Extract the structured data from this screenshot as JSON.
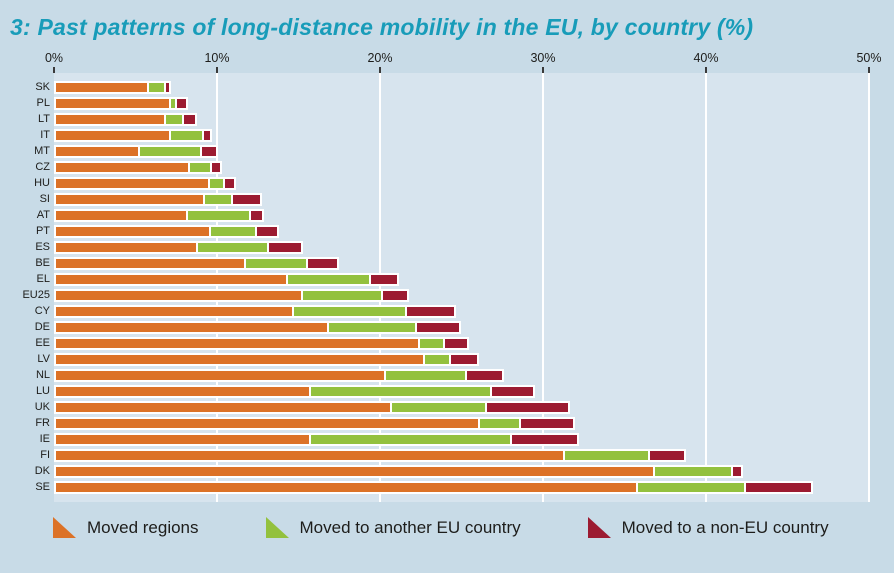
{
  "title": "3: Past patterns of long-distance mobility in the EU, by country (%)",
  "colors": {
    "background": "#c8dbe7",
    "plot_background": "#d7e4ee",
    "gridline": "#ffffff",
    "title": "#189cb9",
    "moved_regions": "#dc7227",
    "moved_eu": "#93c13e",
    "moved_non_eu": "#9c1b31"
  },
  "chart_data": {
    "type": "bar",
    "orientation": "horizontal",
    "stacked": true,
    "title": "3: Past patterns of long-distance mobility in the EU, by country (%)",
    "xlabel": "",
    "ylabel": "",
    "grid": true,
    "legend_position": "bottom",
    "x_axis": {
      "max": 50,
      "unit": "%",
      "tick_values": [
        0,
        10,
        20,
        30,
        40,
        50
      ],
      "tick_labels": [
        "0%",
        "10%",
        "20%",
        "30%",
        "40%",
        "50%"
      ]
    },
    "categories": [
      "SK",
      "PL",
      "LT",
      "IT",
      "MT",
      "CZ",
      "HU",
      "SI",
      "AT",
      "PT",
      "ES",
      "BE",
      "EL",
      "EU25",
      "CY",
      "DE",
      "EE",
      "LV",
      "NL",
      "LU",
      "UK",
      "FR",
      "IE",
      "FI",
      "DK",
      "SE"
    ],
    "series": [
      {
        "name": "Moved regions",
        "color": "#dc7227",
        "values": [
          5.6,
          6.9,
          6.6,
          6.9,
          5.0,
          8.1,
          9.3,
          9.0,
          8.0,
          9.4,
          8.6,
          11.5,
          14.1,
          15.0,
          14.5,
          16.6,
          22.2,
          22.5,
          20.1,
          15.5,
          20.5,
          25.9,
          15.5,
          31.1,
          36.6,
          35.6
        ]
      },
      {
        "name": "Moved to another EU country",
        "color": "#93c13e",
        "values": [
          0.9,
          0.3,
          1.0,
          1.9,
          3.7,
          1.2,
          0.8,
          1.6,
          3.7,
          2.7,
          4.2,
          3.7,
          5.0,
          4.8,
          6.8,
          5.3,
          1.4,
          1.5,
          4.9,
          11.0,
          5.7,
          2.4,
          12.2,
          5.1,
          4.7,
          6.5
        ]
      },
      {
        "name": "Moved to a non-EU country",
        "color": "#9c1b31",
        "values": [
          0.2,
          0.5,
          0.7,
          0.4,
          0.9,
          0.5,
          0.6,
          1.7,
          0.7,
          1.2,
          2.0,
          1.8,
          1.6,
          1.5,
          2.9,
          2.6,
          1.4,
          1.6,
          2.1,
          2.5,
          5.0,
          3.2,
          4.0,
          2.1,
          0.5,
          4.0
        ]
      }
    ]
  }
}
